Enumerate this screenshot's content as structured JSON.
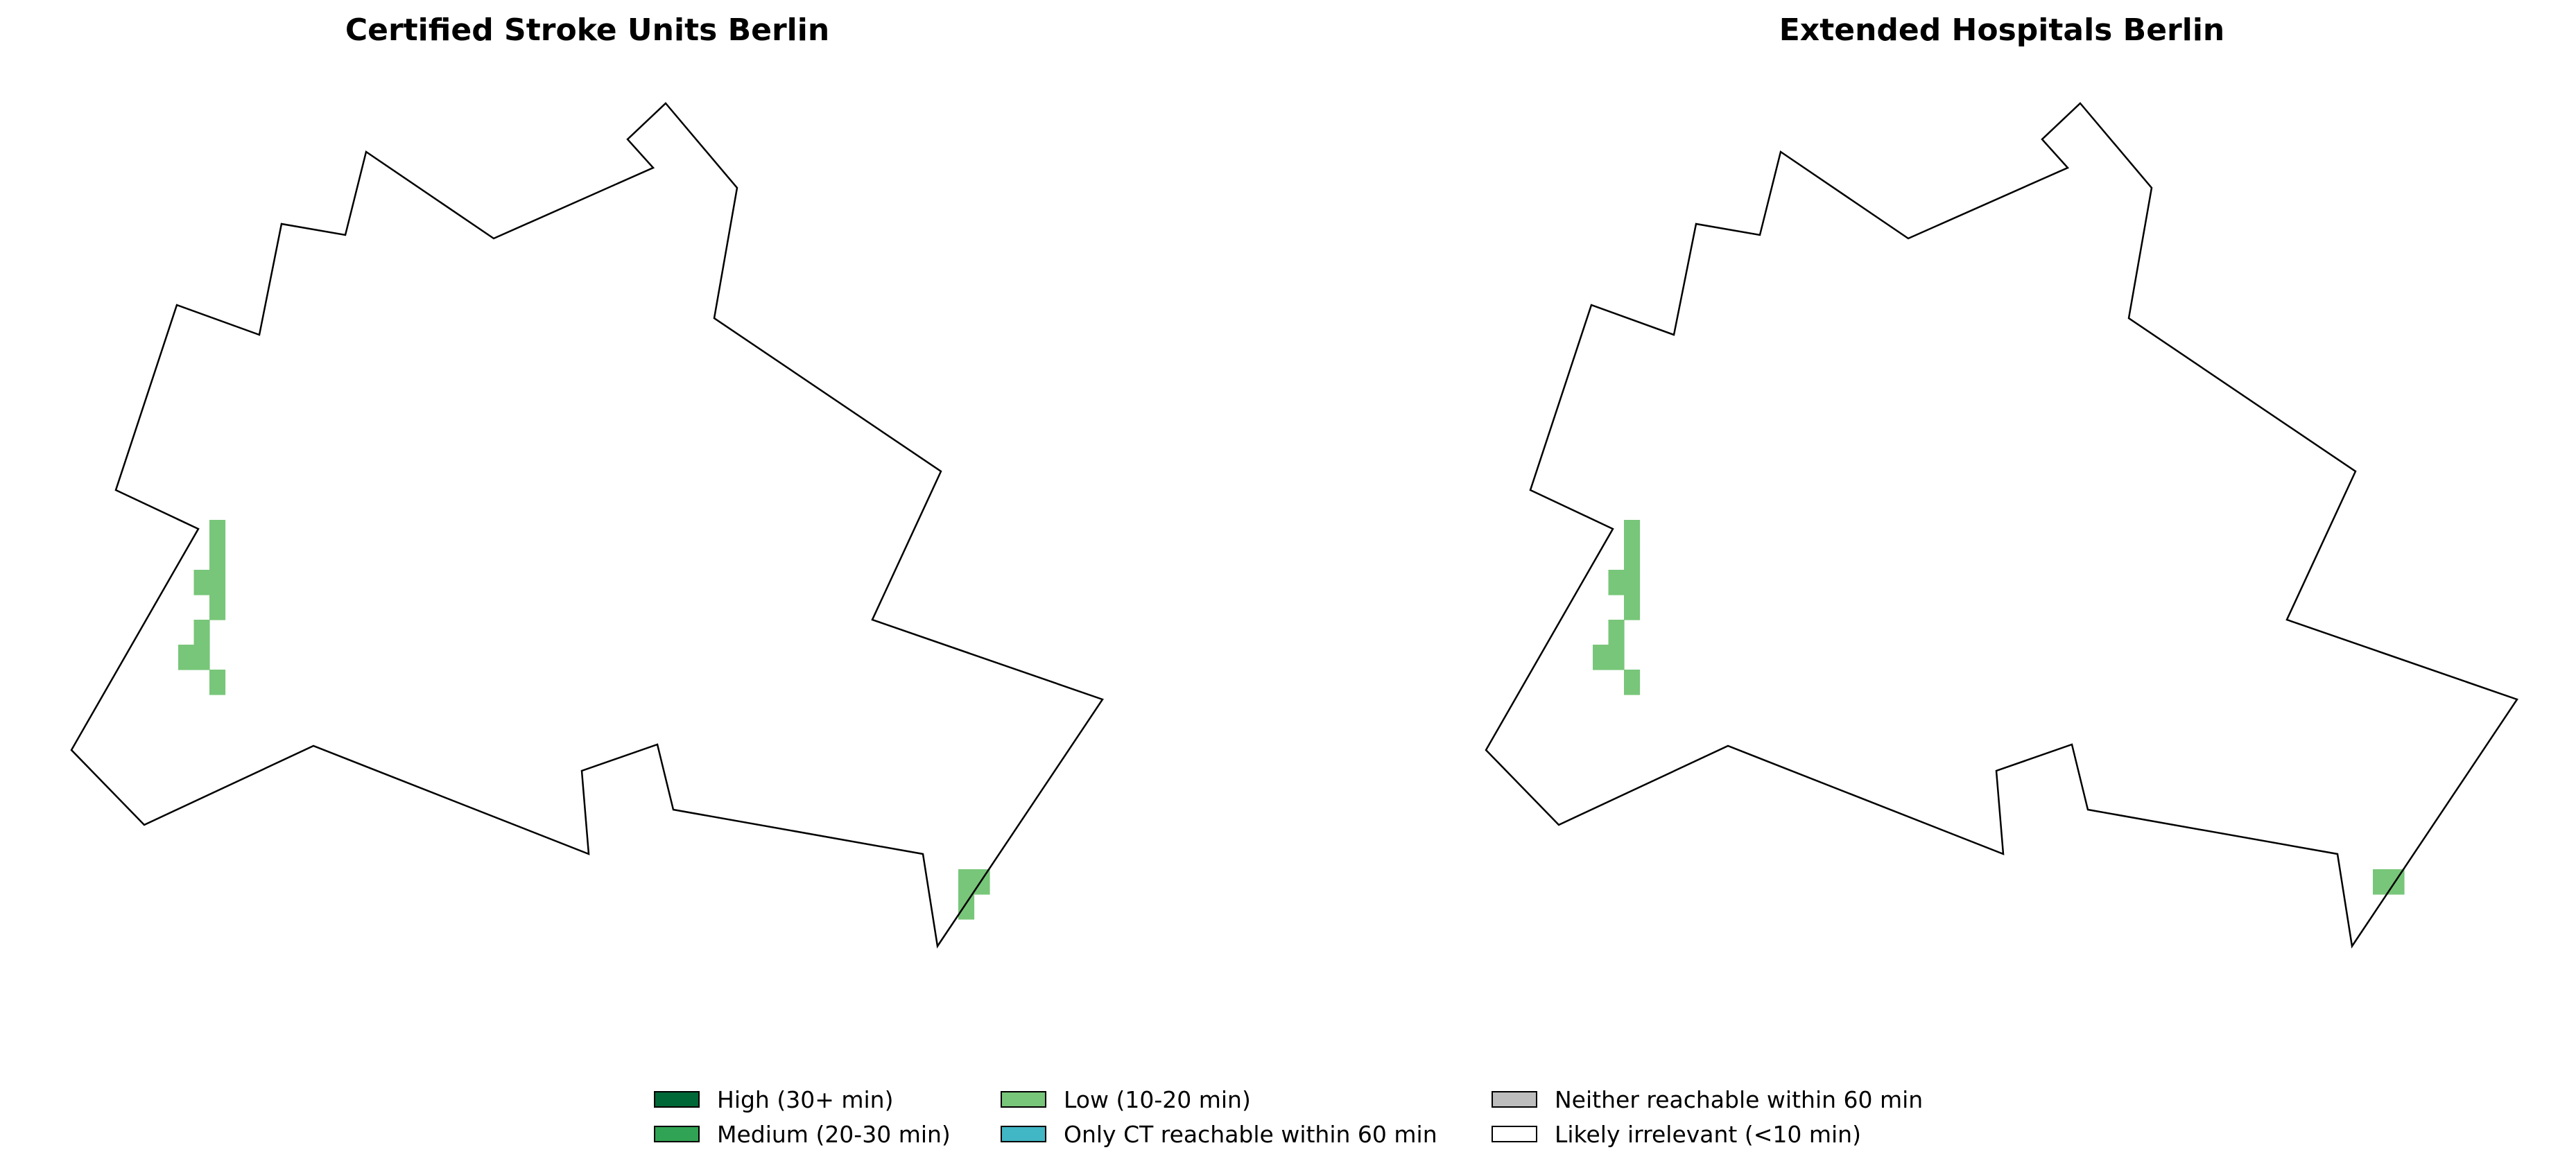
{
  "panels": [
    {
      "title": "Certified Stroke Units Berlin",
      "cells": [
        {
          "category": "Low (10-20 min)",
          "col": 0,
          "row": 0
        },
        {
          "category": "Low (10-20 min)",
          "col": 0,
          "row": 1
        },
        {
          "category": "Low (10-20 min)",
          "col": -1,
          "row": 2
        },
        {
          "category": "Low (10-20 min)",
          "col": 0,
          "row": 2
        },
        {
          "category": "Low (10-20 min)",
          "col": 0,
          "row": 3
        },
        {
          "category": "Low (10-20 min)",
          "col": -1,
          "row": 4
        },
        {
          "category": "Low (10-20 min)",
          "col": -2,
          "row": 5
        },
        {
          "category": "Low (10-20 min)",
          "col": -1,
          "row": 5
        },
        {
          "category": "Low (10-20 min)",
          "col": 0,
          "row": 6
        },
        {
          "category": "Low (10-20 min)",
          "col": 48,
          "row": 14
        },
        {
          "category": "Low (10-20 min)",
          "col": 49,
          "row": 14
        },
        {
          "category": "Low (10-20 min)",
          "col": 48,
          "row": 15
        }
      ]
    },
    {
      "title": "Extended Hospitals Berlin",
      "cells": [
        {
          "category": "Low (10-20 min)",
          "col": 0,
          "row": 0
        },
        {
          "category": "Low (10-20 min)",
          "col": 0,
          "row": 1
        },
        {
          "category": "Low (10-20 min)",
          "col": -1,
          "row": 2
        },
        {
          "category": "Low (10-20 min)",
          "col": 0,
          "row": 2
        },
        {
          "category": "Low (10-20 min)",
          "col": 0,
          "row": 3
        },
        {
          "category": "Low (10-20 min)",
          "col": -1,
          "row": 4
        },
        {
          "category": "Low (10-20 min)",
          "col": -2,
          "row": 5
        },
        {
          "category": "Low (10-20 min)",
          "col": -1,
          "row": 5
        },
        {
          "category": "Low (10-20 min)",
          "col": 0,
          "row": 6
        },
        {
          "category": "Low (10-20 min)",
          "col": 48,
          "row": 14
        },
        {
          "category": "Low (10-20 min)",
          "col": 49,
          "row": 14
        }
      ]
    }
  ],
  "legend": [
    {
      "label": "High (30+ min)",
      "color": "#006837"
    },
    {
      "label": "Medium (20-30 min)",
      "color": "#31a354"
    },
    {
      "label": "Low (10-20 min)",
      "color": "#78c679"
    },
    {
      "label": "Only CT reachable within 60 min",
      "color": "#41b6c4"
    },
    {
      "label": "Neither reachable within 60 min",
      "color": "#bdbdbd"
    },
    {
      "label": "Likely irrelevant (<10 min)",
      "color": "#ffffff"
    }
  ]
}
